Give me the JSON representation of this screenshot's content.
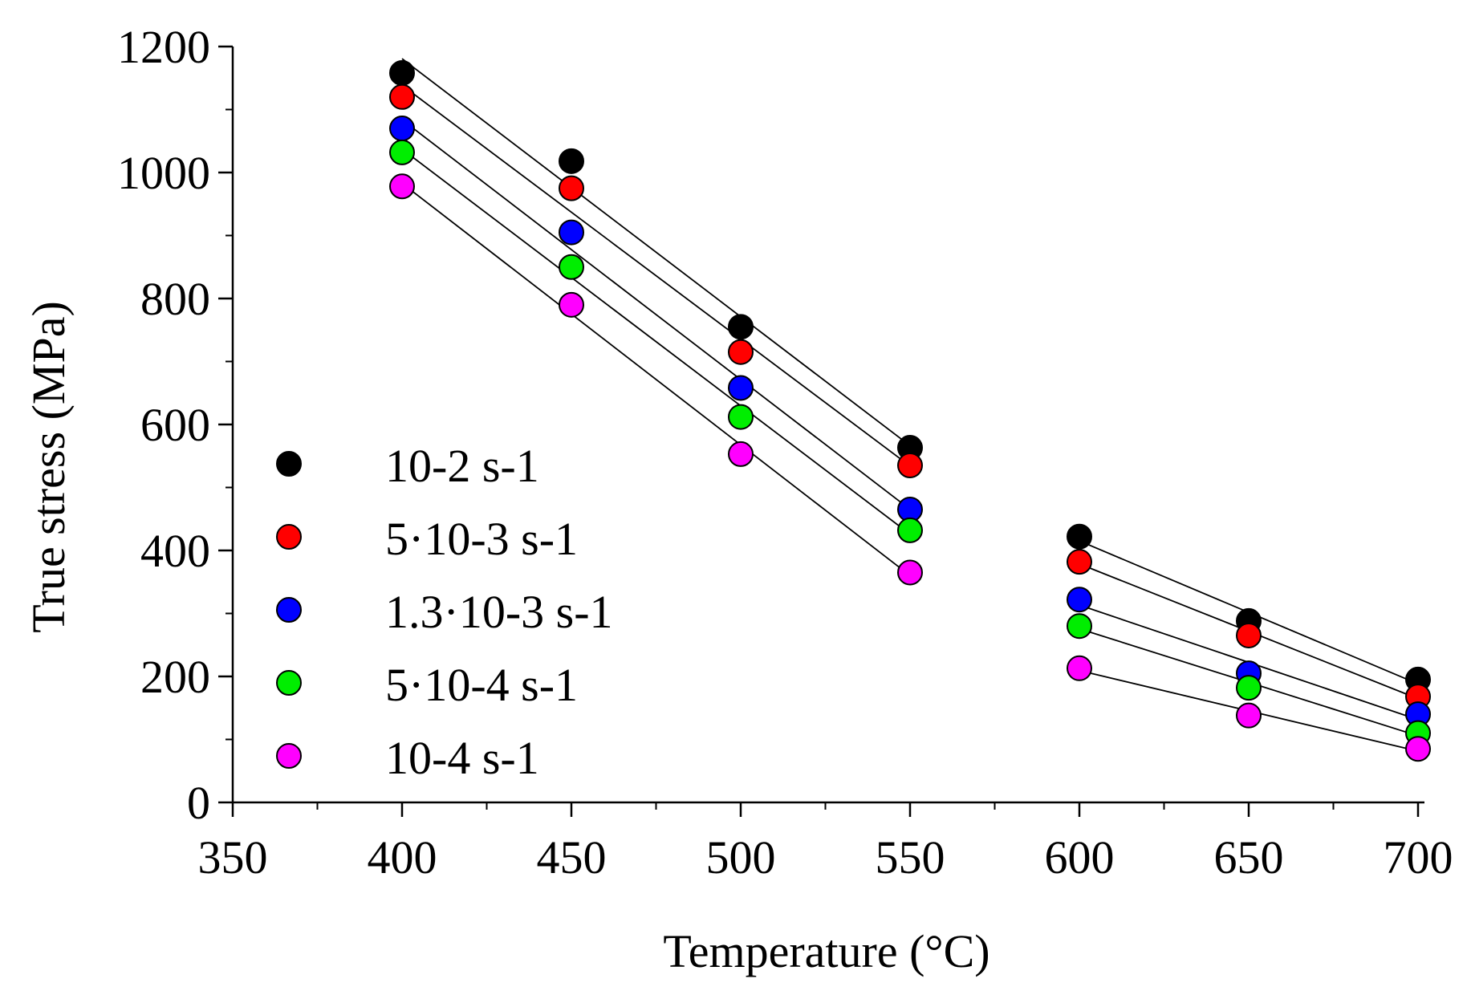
{
  "chart_data": {
    "type": "scatter",
    "xlabel": "Temperature (°C)",
    "ylabel": "True stress (MPa)",
    "xlim": [
      350,
      700
    ],
    "ylim": [
      0,
      1200
    ],
    "xticks": [
      "350",
      "400",
      "450",
      "500",
      "550",
      "600",
      "650",
      "700"
    ],
    "yticks": [
      "0",
      "200",
      "400",
      "600",
      "800",
      "1000",
      "1200"
    ],
    "grid": false,
    "legend_position": "left",
    "fit_lines": "linear fits over 400–550 °C and 600–700 °C for each series",
    "series": [
      {
        "name": "10-2 s-1",
        "color": "#000000",
        "x": [
          400,
          450,
          500,
          550,
          600,
          650,
          700
        ],
        "y": [
          1158,
          1018,
          755,
          563,
          422,
          288,
          195
        ]
      },
      {
        "name": "5·10-3 s-1",
        "color": "#ff0000",
        "x": [
          400,
          450,
          500,
          550,
          600,
          650,
          700
        ],
        "y": [
          1120,
          975,
          715,
          535,
          382,
          265,
          168
        ]
      },
      {
        "name": "1.3·10-3 s-1",
        "color": "#0000ff",
        "x": [
          400,
          450,
          500,
          550,
          600,
          650,
          700
        ],
        "y": [
          1070,
          905,
          658,
          465,
          322,
          205,
          140
        ]
      },
      {
        "name": "5·10-4 s-1",
        "color": "#00ee00",
        "x": [
          400,
          450,
          500,
          550,
          600,
          650,
          700
        ],
        "y": [
          1032,
          850,
          612,
          432,
          280,
          182,
          110
        ]
      },
      {
        "name": "10-4 s-1",
        "color": "#ff00ff",
        "x": [
          400,
          450,
          500,
          550,
          600,
          650,
          700
        ],
        "y": [
          978,
          790,
          553,
          365,
          213,
          138,
          85
        ]
      }
    ]
  }
}
